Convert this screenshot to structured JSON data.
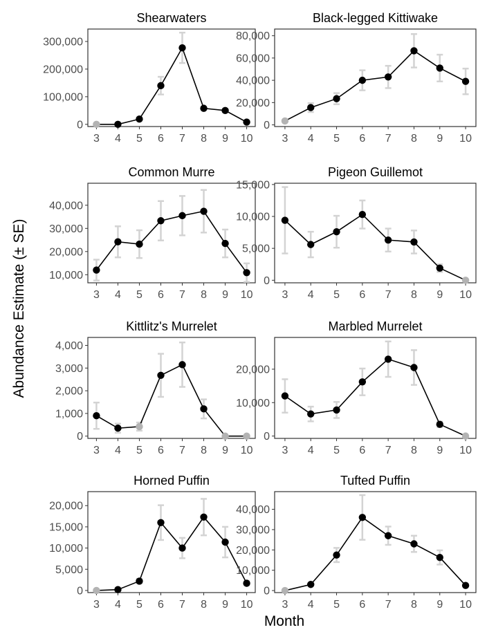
{
  "chart_data": {
    "type": "line",
    "xlabel": "Month",
    "ylabel": "Abundance Estimate (± SE)",
    "colors": {
      "point": "#000000",
      "point_zero": "#b3b3b3",
      "error_bar": "#d3d3d3",
      "line": "#000000",
      "panel_border": "#333333",
      "tick_text": "#4d4d4d"
    },
    "panels": [
      {
        "title": "Shearwaters",
        "ylim": [
          -8000,
          345000
        ],
        "yticks": [
          0,
          100000,
          200000,
          300000
        ],
        "ytick_labels": [
          "0",
          "100,000",
          "200,000",
          "300,000"
        ],
        "x": [
          3,
          4,
          5,
          6,
          7,
          8,
          9,
          10
        ],
        "y": [
          0,
          0,
          19000,
          140000,
          277000,
          58000,
          50000,
          8000
        ],
        "se": [
          0,
          0,
          2000,
          32000,
          55000,
          5000,
          4000,
          1000
        ],
        "zero": [
          true,
          false,
          false,
          false,
          false,
          false,
          false,
          false
        ]
      },
      {
        "title": "Black-legged Kittiwake",
        "ylim": [
          -1500,
          86000
        ],
        "yticks": [
          0,
          20000,
          40000,
          60000,
          80000
        ],
        "ytick_labels": [
          "0",
          "20,000",
          "40,000",
          "60,000",
          "80,000"
        ],
        "x": [
          3,
          4,
          5,
          6,
          7,
          8,
          9,
          10
        ],
        "y": [
          3500,
          15500,
          23500,
          40000,
          43000,
          66500,
          51000,
          39000
        ],
        "se": [
          0,
          4000,
          5000,
          9000,
          10000,
          15000,
          12000,
          11500
        ],
        "zero": [
          true,
          false,
          false,
          false,
          false,
          false,
          false,
          false
        ]
      },
      {
        "title": "Common Murre",
        "ylim": [
          6500,
          49500
        ],
        "yticks": [
          10000,
          20000,
          30000,
          40000
        ],
        "ytick_labels": [
          "10,000",
          "20,000",
          "30,000",
          "40,000"
        ],
        "x": [
          3,
          4,
          5,
          6,
          7,
          8,
          9,
          10
        ],
        "y": [
          12000,
          24200,
          23200,
          33300,
          35500,
          37400,
          23500,
          10900
        ],
        "se": [
          4500,
          6700,
          6000,
          8500,
          8500,
          9200,
          6000,
          4000
        ],
        "zero": [
          false,
          false,
          false,
          false,
          false,
          false,
          false,
          false
        ]
      },
      {
        "title": "Pigeon Guillemot",
        "ylim": [
          -400,
          15200
        ],
        "yticks": [
          0,
          5000,
          10000,
          15000
        ],
        "ytick_labels": [
          "0",
          "5,000",
          "10,000",
          "15,000"
        ],
        "x": [
          3,
          4,
          5,
          6,
          7,
          8,
          9,
          10
        ],
        "y": [
          9400,
          5600,
          7600,
          10300,
          6300,
          6000,
          1900,
          0
        ],
        "se": [
          5200,
          2000,
          2500,
          2200,
          1800,
          1800,
          600,
          0
        ],
        "zero": [
          false,
          false,
          false,
          false,
          false,
          false,
          false,
          true
        ]
      },
      {
        "title": "Kittlitz's Murrelet",
        "ylim": [
          -100,
          4350
        ],
        "yticks": [
          0,
          1000,
          2000,
          3000,
          4000
        ],
        "ytick_labels": [
          "0",
          "1,000",
          "2,000",
          "3,000",
          "4,000"
        ],
        "x": [
          3,
          4,
          5,
          6,
          7,
          8,
          9,
          10
        ],
        "y": [
          900,
          350,
          420,
          2680,
          3150,
          1200,
          0,
          0
        ],
        "se": [
          580,
          200,
          180,
          950,
          980,
          420,
          0,
          0
        ],
        "zero": [
          false,
          false,
          true,
          false,
          false,
          false,
          true,
          true
        ]
      },
      {
        "title": "Marbled Murrelet",
        "ylim": [
          -700,
          29500
        ],
        "yticks": [
          0,
          10000,
          20000
        ],
        "ytick_labels": [
          "0",
          "10,000",
          "20,000"
        ],
        "x": [
          3,
          4,
          5,
          6,
          7,
          8,
          9,
          10
        ],
        "y": [
          12000,
          6600,
          7800,
          16200,
          23000,
          20500,
          3500,
          0
        ],
        "se": [
          5000,
          2200,
          2400,
          4000,
          5300,
          5200,
          800,
          0
        ],
        "zero": [
          false,
          false,
          false,
          false,
          false,
          false,
          false,
          true
        ]
      },
      {
        "title": "Horned Puffin",
        "ylim": [
          -500,
          23300
        ],
        "yticks": [
          0,
          5000,
          10000,
          15000,
          20000
        ],
        "ytick_labels": [
          "0",
          "5,000",
          "10,000",
          "15,000",
          "20,000"
        ],
        "x": [
          3,
          4,
          5,
          6,
          7,
          8,
          9,
          10
        ],
        "y": [
          0,
          200,
          2200,
          16000,
          10000,
          17300,
          11400,
          1700
        ],
        "se": [
          0,
          100,
          500,
          4100,
          2400,
          4300,
          3600,
          500
        ],
        "zero": [
          true,
          false,
          false,
          false,
          false,
          false,
          false,
          false
        ]
      },
      {
        "title": "Tufted Puffin",
        "ylim": [
          -1000,
          48700
        ],
        "yticks": [
          0,
          10000,
          20000,
          30000,
          40000
        ],
        "ytick_labels": [
          "0",
          "10,000",
          "20,000",
          "30,000",
          "40,000"
        ],
        "x": [
          3,
          4,
          5,
          6,
          7,
          8,
          9,
          10
        ],
        "y": [
          0,
          3000,
          17500,
          36000,
          27000,
          23000,
          16300,
          2500
        ],
        "se": [
          0,
          600,
          3500,
          11000,
          4500,
          4000,
          3500,
          600
        ],
        "zero": [
          true,
          false,
          false,
          false,
          false,
          false,
          false,
          false
        ]
      }
    ]
  }
}
